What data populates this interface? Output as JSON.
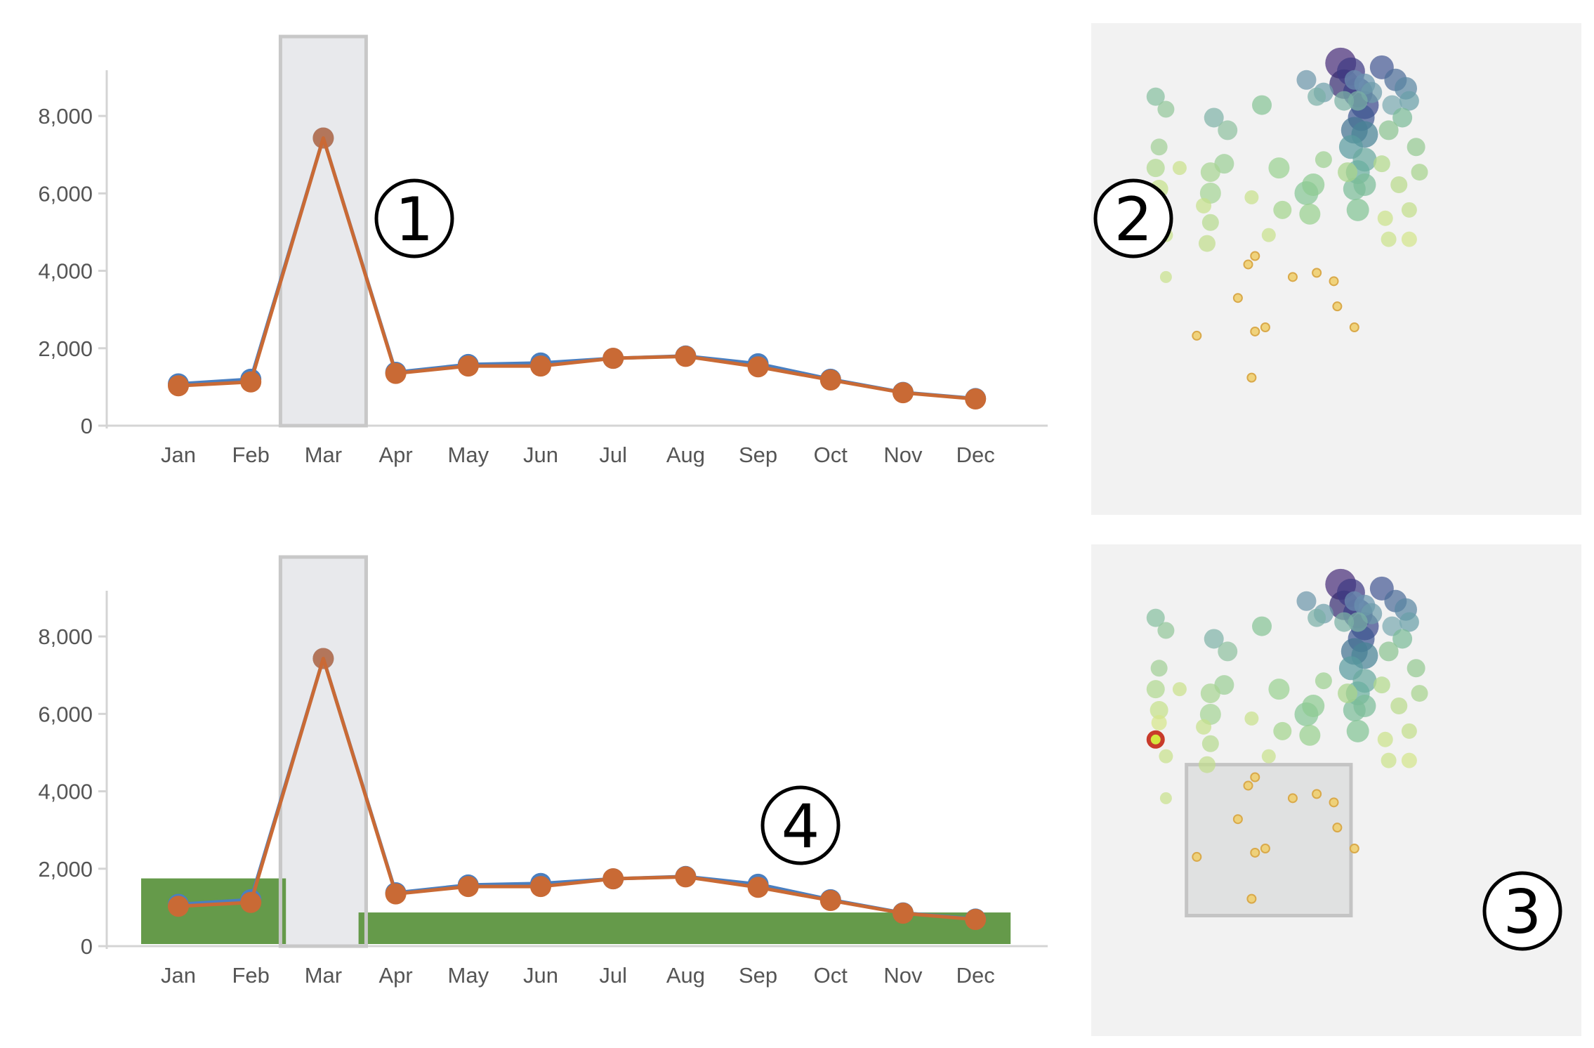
{
  "chart_data": [
    {
      "type": "line",
      "categories": [
        "Jan",
        "Feb",
        "Mar",
        "Apr",
        "May",
        "Jun",
        "Jul",
        "Aug",
        "Sep",
        "Oct",
        "Nov",
        "Dec"
      ],
      "yticks": [
        "0",
        "2,000",
        "4,000",
        "6,000",
        "8,000"
      ],
      "ylim": [
        0,
        9000
      ],
      "series": [
        {
          "color": "#4a7fc0",
          "values": [
            1080,
            1200,
            7430,
            1380,
            1580,
            1620,
            1740,
            1800,
            1600,
            1200,
            860,
            700
          ]
        },
        {
          "color": "#c96a35",
          "values": [
            1030,
            1130,
            7430,
            1350,
            1540,
            1540,
            1740,
            1790,
            1520,
            1180,
            850,
            690
          ]
        }
      ],
      "highlight_category": "Mar",
      "filter_bars": [],
      "callout": "1"
    },
    {
      "type": "line",
      "categories": [
        "Jan",
        "Feb",
        "Mar",
        "Apr",
        "May",
        "Jun",
        "Jul",
        "Aug",
        "Sep",
        "Oct",
        "Nov",
        "Dec"
      ],
      "yticks": [
        "0",
        "2,000",
        "4,000",
        "6,000",
        "8,000"
      ],
      "ylim": [
        0,
        9000
      ],
      "series": [
        {
          "color": "#4a7fc0",
          "values": [
            1080,
            1200,
            7430,
            1380,
            1580,
            1620,
            1740,
            1800,
            1600,
            1200,
            860,
            700
          ]
        },
        {
          "color": "#c96a35",
          "values": [
            1030,
            1130,
            7430,
            1350,
            1540,
            1540,
            1740,
            1790,
            1520,
            1180,
            850,
            690
          ]
        }
      ],
      "highlight_category": "Mar",
      "filter_bars": [
        {
          "from": "Jan",
          "to": "Feb",
          "value": 1750,
          "color": "#659a4a"
        },
        {
          "from": "Apr",
          "to": "Dec",
          "value": 870,
          "color": "#659a4a"
        }
      ],
      "callout": "4"
    },
    {
      "type": "scatter",
      "xlim": [
        0,
        100
      ],
      "ylim": [
        0,
        100
      ],
      "points": [
        {
          "x": 81,
          "y": 96,
          "s": 32,
          "c": "#4a2f7a"
        },
        {
          "x": 84,
          "y": 94,
          "s": 28,
          "c": "#3e3a83"
        },
        {
          "x": 82,
          "y": 91,
          "s": 30,
          "c": "#382e72"
        },
        {
          "x": 86,
          "y": 89,
          "s": 30,
          "c": "#3a3f87"
        },
        {
          "x": 88,
          "y": 86,
          "s": 28,
          "c": "#3b4a8c"
        },
        {
          "x": 87,
          "y": 83,
          "s": 26,
          "c": "#3f5891"
        },
        {
          "x": 85,
          "y": 80,
          "s": 26,
          "c": "#447392"
        },
        {
          "x": 88,
          "y": 79,
          "s": 26,
          "c": "#4a8495"
        },
        {
          "x": 84,
          "y": 76,
          "s": 22,
          "c": "#5a9ba0"
        },
        {
          "x": 88,
          "y": 73,
          "s": 22,
          "c": "#6aa9a0"
        },
        {
          "x": 86,
          "y": 70,
          "s": 22,
          "c": "#6aaea0"
        },
        {
          "x": 83,
          "y": 70,
          "s": 16,
          "c": "#a9d48a"
        },
        {
          "x": 85,
          "y": 66,
          "s": 20,
          "c": "#7bbc98"
        },
        {
          "x": 88,
          "y": 67,
          "s": 20,
          "c": "#7bbc98"
        },
        {
          "x": 86,
          "y": 61,
          "s": 20,
          "c": "#82c394"
        },
        {
          "x": 93,
          "y": 95,
          "s": 22,
          "c": "#475a94"
        },
        {
          "x": 97,
          "y": 92,
          "s": 20,
          "c": "#4d6e98"
        },
        {
          "x": 100,
          "y": 90,
          "s": 20,
          "c": "#5a86a2"
        },
        {
          "x": 101,
          "y": 87,
          "s": 16,
          "c": "#6a9fa8"
        },
        {
          "x": 88,
          "y": 91,
          "s": 18,
          "c": "#6896ad"
        },
        {
          "x": 90,
          "y": 89,
          "s": 18,
          "c": "#6e9cab"
        },
        {
          "x": 96,
          "y": 86,
          "s": 16,
          "c": "#7aa9b0"
        },
        {
          "x": 85,
          "y": 92,
          "s": 16,
          "c": "#6b8db0"
        },
        {
          "x": 71,
          "y": 92,
          "s": 16,
          "c": "#6d97ab"
        },
        {
          "x": 76,
          "y": 89,
          "s": 16,
          "c": "#6fa0aa"
        },
        {
          "x": 82,
          "y": 87,
          "s": 16,
          "c": "#7cb2a5"
        },
        {
          "x": 86,
          "y": 87,
          "s": 16,
          "c": "#7cb2a5"
        },
        {
          "x": 74,
          "y": 88,
          "s": 14,
          "c": "#7cb0a8"
        },
        {
          "x": 99,
          "y": 83,
          "s": 16,
          "c": "#7cbb99"
        },
        {
          "x": 95,
          "y": 80,
          "s": 16,
          "c": "#8cc492"
        },
        {
          "x": 103,
          "y": 76,
          "s": 14,
          "c": "#94c992"
        },
        {
          "x": 104,
          "y": 70,
          "s": 12,
          "c": "#a6d38e"
        },
        {
          "x": 93,
          "y": 72,
          "s": 12,
          "c": "#b3d98c"
        },
        {
          "x": 98,
          "y": 67,
          "s": 12,
          "c": "#b8da8b"
        },
        {
          "x": 101,
          "y": 61,
          "s": 10,
          "c": "#c2de8a"
        },
        {
          "x": 94,
          "y": 59,
          "s": 10,
          "c": "#cbe28a"
        },
        {
          "x": 95,
          "y": 54,
          "s": 10,
          "c": "#cbe28a"
        },
        {
          "x": 101,
          "y": 54,
          "s": 10,
          "c": "#d2e58a"
        },
        {
          "x": 76,
          "y": 73,
          "s": 12,
          "c": "#9cd090"
        },
        {
          "x": 73,
          "y": 67,
          "s": 20,
          "c": "#8ecb92"
        },
        {
          "x": 72,
          "y": 60,
          "s": 18,
          "c": "#99d08f"
        },
        {
          "x": 71,
          "y": 65,
          "s": 22,
          "c": "#87c696"
        },
        {
          "x": 58,
          "y": 86,
          "s": 16,
          "c": "#86c396"
        },
        {
          "x": 63,
          "y": 71,
          "s": 18,
          "c": "#9ad192"
        },
        {
          "x": 64,
          "y": 61,
          "s": 14,
          "c": "#a4d48e"
        },
        {
          "x": 44,
          "y": 83,
          "s": 16,
          "c": "#7fb3a7"
        },
        {
          "x": 48,
          "y": 80,
          "s": 16,
          "c": "#8fc0a0"
        },
        {
          "x": 47,
          "y": 72,
          "s": 16,
          "c": "#9bcf96"
        },
        {
          "x": 43,
          "y": 65,
          "s": 18,
          "c": "#a5d496"
        },
        {
          "x": 43,
          "y": 70,
          "s": 16,
          "c": "#a8d493"
        },
        {
          "x": 43,
          "y": 58,
          "s": 12,
          "c": "#b5d98f"
        },
        {
          "x": 42,
          "y": 53,
          "s": 12,
          "c": "#c0dd8c"
        },
        {
          "x": 41,
          "y": 62,
          "s": 10,
          "c": "#c6e08c"
        },
        {
          "x": 34,
          "y": 71,
          "s": 8,
          "c": "#c9e18b"
        },
        {
          "x": 27,
          "y": 88,
          "s": 14,
          "c": "#86bfa0"
        },
        {
          "x": 30,
          "y": 85,
          "s": 12,
          "c": "#93c69a"
        },
        {
          "x": 28,
          "y": 76,
          "s": 12,
          "c": "#a1cf96"
        },
        {
          "x": 27,
          "y": 71,
          "s": 14,
          "c": "#b0d890"
        },
        {
          "x": 28,
          "y": 66,
          "s": 14,
          "c": "#c5e08b"
        },
        {
          "x": 28,
          "y": 63,
          "s": 10,
          "c": "#d5e68a"
        },
        {
          "x": 30,
          "y": 55,
          "s": 8,
          "c": "#c7e08c"
        },
        {
          "x": 60,
          "y": 55,
          "s": 8,
          "c": "#c7e08c"
        },
        {
          "x": 55,
          "y": 64,
          "s": 8,
          "c": "#c7e08c"
        },
        {
          "x": 27,
          "y": 59,
          "s": 10,
          "c": "#d4e73f",
          "stroke": "#c83b2b"
        },
        {
          "x": 30,
          "y": 45,
          "s": 5,
          "c": "#c7e08c"
        },
        {
          "x": 54,
          "y": 48,
          "s": 6,
          "c": "#f0cf6f"
        },
        {
          "x": 56,
          "y": 50,
          "s": 6,
          "c": "#f0cf6f"
        },
        {
          "x": 74,
          "y": 46,
          "s": 6,
          "c": "#f0cf6f"
        },
        {
          "x": 67,
          "y": 45,
          "s": 6,
          "c": "#f0cf6f"
        },
        {
          "x": 79,
          "y": 44,
          "s": 6,
          "c": "#f0cf6f"
        },
        {
          "x": 80,
          "y": 38,
          "s": 6,
          "c": "#f0cf6f"
        },
        {
          "x": 51,
          "y": 40,
          "s": 6,
          "c": "#f0cf6f"
        },
        {
          "x": 85,
          "y": 33,
          "s": 6,
          "c": "#f0cf6f"
        },
        {
          "x": 39,
          "y": 31,
          "s": 6,
          "c": "#f0cf6f"
        },
        {
          "x": 56,
          "y": 32,
          "s": 6,
          "c": "#f0cf6f"
        },
        {
          "x": 59,
          "y": 33,
          "s": 6,
          "c": "#f0cf6f"
        },
        {
          "x": 55,
          "y": 21,
          "s": 6,
          "c": "#f0cf6f"
        }
      ],
      "brush": null,
      "callout": "2"
    },
    {
      "type": "scatter",
      "xlim": [
        0,
        100
      ],
      "ylim": [
        0,
        100
      ],
      "points": [
        {
          "x": 81,
          "y": 96,
          "s": 32,
          "c": "#4a2f7a"
        },
        {
          "x": 84,
          "y": 94,
          "s": 28,
          "c": "#3e3a83"
        },
        {
          "x": 82,
          "y": 91,
          "s": 30,
          "c": "#382e72"
        },
        {
          "x": 86,
          "y": 89,
          "s": 30,
          "c": "#3a3f87"
        },
        {
          "x": 88,
          "y": 86,
          "s": 28,
          "c": "#3b4a8c"
        },
        {
          "x": 87,
          "y": 83,
          "s": 26,
          "c": "#3f5891"
        },
        {
          "x": 85,
          "y": 80,
          "s": 26,
          "c": "#447392"
        },
        {
          "x": 88,
          "y": 79,
          "s": 26,
          "c": "#4a8495"
        },
        {
          "x": 84,
          "y": 76,
          "s": 22,
          "c": "#5a9ba0"
        },
        {
          "x": 88,
          "y": 73,
          "s": 22,
          "c": "#6aa9a0"
        },
        {
          "x": 86,
          "y": 70,
          "s": 22,
          "c": "#6aaea0"
        },
        {
          "x": 83,
          "y": 70,
          "s": 16,
          "c": "#a9d48a"
        },
        {
          "x": 85,
          "y": 66,
          "s": 20,
          "c": "#7bbc98"
        },
        {
          "x": 88,
          "y": 67,
          "s": 20,
          "c": "#7bbc98"
        },
        {
          "x": 86,
          "y": 61,
          "s": 20,
          "c": "#82c394"
        },
        {
          "x": 93,
          "y": 95,
          "s": 22,
          "c": "#475a94"
        },
        {
          "x": 97,
          "y": 92,
          "s": 20,
          "c": "#4d6e98"
        },
        {
          "x": 100,
          "y": 90,
          "s": 20,
          "c": "#5a86a2"
        },
        {
          "x": 101,
          "y": 87,
          "s": 16,
          "c": "#6a9fa8"
        },
        {
          "x": 88,
          "y": 91,
          "s": 18,
          "c": "#6896ad"
        },
        {
          "x": 90,
          "y": 89,
          "s": 18,
          "c": "#6e9cab"
        },
        {
          "x": 96,
          "y": 86,
          "s": 16,
          "c": "#7aa9b0"
        },
        {
          "x": 85,
          "y": 92,
          "s": 16,
          "c": "#6b8db0"
        },
        {
          "x": 71,
          "y": 92,
          "s": 16,
          "c": "#6d97ab"
        },
        {
          "x": 76,
          "y": 89,
          "s": 16,
          "c": "#6fa0aa"
        },
        {
          "x": 82,
          "y": 87,
          "s": 16,
          "c": "#7cb2a5"
        },
        {
          "x": 86,
          "y": 87,
          "s": 16,
          "c": "#7cb2a5"
        },
        {
          "x": 74,
          "y": 88,
          "s": 14,
          "c": "#7cb0a8"
        },
        {
          "x": 99,
          "y": 83,
          "s": 16,
          "c": "#7cbb99"
        },
        {
          "x": 95,
          "y": 80,
          "s": 16,
          "c": "#8cc492"
        },
        {
          "x": 103,
          "y": 76,
          "s": 14,
          "c": "#94c992"
        },
        {
          "x": 104,
          "y": 70,
          "s": 12,
          "c": "#a6d38e"
        },
        {
          "x": 93,
          "y": 72,
          "s": 12,
          "c": "#b3d98c"
        },
        {
          "x": 98,
          "y": 67,
          "s": 12,
          "c": "#b8da8b"
        },
        {
          "x": 101,
          "y": 61,
          "s": 10,
          "c": "#c2de8a"
        },
        {
          "x": 94,
          "y": 59,
          "s": 10,
          "c": "#cbe28a"
        },
        {
          "x": 95,
          "y": 54,
          "s": 10,
          "c": "#cbe28a"
        },
        {
          "x": 101,
          "y": 54,
          "s": 10,
          "c": "#d2e58a"
        },
        {
          "x": 76,
          "y": 73,
          "s": 12,
          "c": "#9cd090"
        },
        {
          "x": 73,
          "y": 67,
          "s": 20,
          "c": "#8ecb92"
        },
        {
          "x": 72,
          "y": 60,
          "s": 18,
          "c": "#99d08f"
        },
        {
          "x": 71,
          "y": 65,
          "s": 22,
          "c": "#87c696"
        },
        {
          "x": 58,
          "y": 86,
          "s": 16,
          "c": "#86c396"
        },
        {
          "x": 63,
          "y": 71,
          "s": 18,
          "c": "#9ad192"
        },
        {
          "x": 64,
          "y": 61,
          "s": 14,
          "c": "#a4d48e"
        },
        {
          "x": 44,
          "y": 83,
          "s": 16,
          "c": "#7fb3a7"
        },
        {
          "x": 48,
          "y": 80,
          "s": 16,
          "c": "#8fc0a0"
        },
        {
          "x": 47,
          "y": 72,
          "s": 16,
          "c": "#9bcf96"
        },
        {
          "x": 43,
          "y": 65,
          "s": 18,
          "c": "#a5d496"
        },
        {
          "x": 43,
          "y": 70,
          "s": 16,
          "c": "#a8d493"
        },
        {
          "x": 43,
          "y": 58,
          "s": 12,
          "c": "#b5d98f"
        },
        {
          "x": 42,
          "y": 53,
          "s": 12,
          "c": "#c0dd8c"
        },
        {
          "x": 41,
          "y": 62,
          "s": 10,
          "c": "#c6e08c"
        },
        {
          "x": 34,
          "y": 71,
          "s": 8,
          "c": "#c9e18b"
        },
        {
          "x": 27,
          "y": 88,
          "s": 14,
          "c": "#86bfa0"
        },
        {
          "x": 30,
          "y": 85,
          "s": 12,
          "c": "#93c69a"
        },
        {
          "x": 28,
          "y": 76,
          "s": 12,
          "c": "#a1cf96"
        },
        {
          "x": 27,
          "y": 71,
          "s": 14,
          "c": "#b0d890"
        },
        {
          "x": 28,
          "y": 66,
          "s": 14,
          "c": "#c5e08b"
        },
        {
          "x": 28,
          "y": 63,
          "s": 10,
          "c": "#d5e68a"
        },
        {
          "x": 30,
          "y": 55,
          "s": 8,
          "c": "#c7e08c"
        },
        {
          "x": 60,
          "y": 55,
          "s": 8,
          "c": "#c7e08c"
        },
        {
          "x": 55,
          "y": 64,
          "s": 8,
          "c": "#c7e08c"
        },
        {
          "x": 27,
          "y": 59,
          "s": 10,
          "c": "#d4e73f",
          "stroke": "#c83b2b"
        },
        {
          "x": 30,
          "y": 45,
          "s": 5,
          "c": "#c7e08c"
        },
        {
          "x": 54,
          "y": 48,
          "s": 6,
          "c": "#f0cf6f"
        },
        {
          "x": 56,
          "y": 50,
          "s": 6,
          "c": "#f0cf6f"
        },
        {
          "x": 74,
          "y": 46,
          "s": 6,
          "c": "#f0cf6f"
        },
        {
          "x": 67,
          "y": 45,
          "s": 6,
          "c": "#f0cf6f"
        },
        {
          "x": 79,
          "y": 44,
          "s": 6,
          "c": "#f0cf6f"
        },
        {
          "x": 80,
          "y": 38,
          "s": 6,
          "c": "#f0cf6f"
        },
        {
          "x": 51,
          "y": 40,
          "s": 6,
          "c": "#f0cf6f"
        },
        {
          "x": 85,
          "y": 33,
          "s": 6,
          "c": "#f0cf6f"
        },
        {
          "x": 39,
          "y": 31,
          "s": 6,
          "c": "#f0cf6f"
        },
        {
          "x": 56,
          "y": 32,
          "s": 6,
          "c": "#f0cf6f"
        },
        {
          "x": 59,
          "y": 33,
          "s": 6,
          "c": "#f0cf6f"
        },
        {
          "x": 55,
          "y": 21,
          "s": 6,
          "c": "#f0cf6f"
        }
      ],
      "brush": {
        "x0": 36,
        "x1": 84,
        "y0": 17,
        "y1": 53
      },
      "callout": "3"
    }
  ],
  "colors": {
    "highlight_fill": "#e8e9ec",
    "highlight_stroke": "#c8c8c8",
    "brush_fill": "#e0e1e1",
    "brush_stroke": "#c4c4c4"
  }
}
